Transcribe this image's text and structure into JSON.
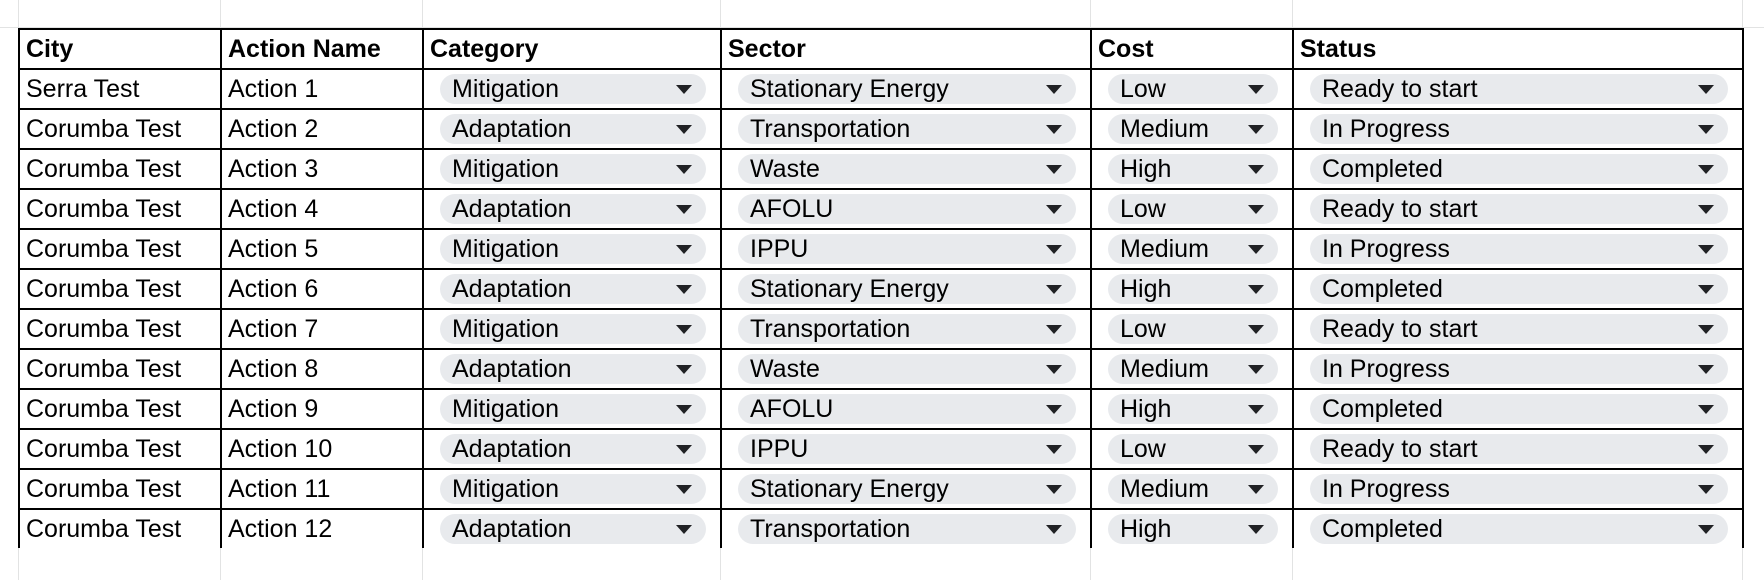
{
  "table": {
    "headers": [
      "City",
      "Action Name",
      "Category",
      "Sector",
      "Cost",
      "Status"
    ],
    "rows": [
      [
        "Serra Test",
        "Action 1",
        "Mitigation",
        "Stationary Energy",
        "Low",
        "Ready to start"
      ],
      [
        "Corumba Test",
        "Action 2",
        "Adaptation",
        "Transportation",
        "Medium",
        "In Progress"
      ],
      [
        "Corumba Test",
        "Action 3",
        "Mitigation",
        "Waste",
        "High",
        "Completed"
      ],
      [
        "Corumba Test",
        "Action 4",
        "Adaptation",
        "AFOLU",
        "Low",
        "Ready to start"
      ],
      [
        "Corumba Test",
        "Action 5",
        "Mitigation",
        "IPPU",
        "Medium",
        "In Progress"
      ],
      [
        "Corumba Test",
        "Action 6",
        "Adaptation",
        "Stationary Energy",
        "High",
        "Completed"
      ],
      [
        "Corumba Test",
        "Action 7",
        "Mitigation",
        "Transportation",
        "Low",
        "Ready to start"
      ],
      [
        "Corumba Test",
        "Action 8",
        "Adaptation",
        "Waste",
        "Medium",
        "In Progress"
      ],
      [
        "Corumba Test",
        "Action 9",
        "Mitigation",
        "AFOLU",
        "High",
        "Completed"
      ],
      [
        "Corumba Test",
        "Action 10",
        "Adaptation",
        "IPPU",
        "Low",
        "Ready to start"
      ],
      [
        "Corumba Test",
        "Action 11",
        "Mitigation",
        "Stationary Energy",
        "Medium",
        "In Progress"
      ],
      [
        "Corumba Test",
        "Action 12",
        "Adaptation",
        "Transportation",
        "High",
        "Completed"
      ]
    ],
    "dropdown_columns": [
      2,
      3,
      4,
      5
    ]
  },
  "colors": {
    "chip_background": "#e8eaed",
    "gridline": "#e2e3e3",
    "border": "#000000"
  },
  "icons": {
    "dropdown": "chevron-down-icon"
  }
}
